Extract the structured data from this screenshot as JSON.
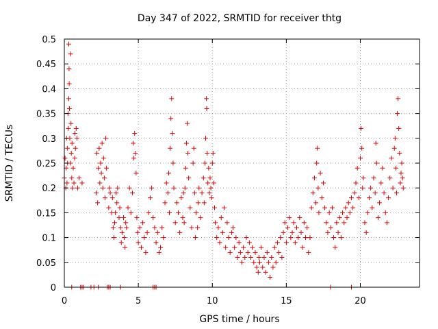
{
  "chart_data": {
    "type": "scatter",
    "title": "Day 347 of 2022, SRMTID for receiver thtg",
    "xlabel": "GPS time / hours",
    "ylabel": "SRMTID / TECUs",
    "xlim": [
      0,
      24
    ],
    "ylim": [
      0,
      0.5
    ],
    "xticks": [
      0,
      5,
      10,
      15,
      20
    ],
    "xtick_labels": [
      "0",
      "5",
      "10",
      "15",
      "20"
    ],
    "yticks": [
      0,
      0.05,
      0.1,
      0.15,
      0.2,
      0.25,
      0.3,
      0.35,
      0.4,
      0.45,
      0.5
    ],
    "ytick_labels": [
      "0",
      "0.05",
      "0.1",
      "0.15",
      "0.2",
      "0.25",
      "0.3",
      "0.35",
      "0.4",
      "0.45",
      "0.5"
    ],
    "grid": true,
    "legend": "none",
    "marker": "+",
    "color": "#dd0000",
    "series": [
      {
        "points": [
          [
            0.0,
            0.22
          ],
          [
            0.05,
            0.26
          ],
          [
            0.1,
            0.2
          ],
          [
            0.12,
            0.24
          ],
          [
            0.15,
            0.3
          ],
          [
            0.18,
            0.21
          ],
          [
            0.2,
            0.28
          ],
          [
            0.22,
            0.25
          ],
          [
            0.25,
            0.35
          ],
          [
            0.27,
            0.32
          ],
          [
            0.3,
            0.38
          ],
          [
            0.3,
            0.49
          ],
          [
            0.32,
            0.44
          ],
          [
            0.33,
            0.41
          ],
          [
            0.35,
            0.36
          ],
          [
            0.37,
            0.3
          ],
          [
            0.4,
            0.25
          ],
          [
            0.42,
            0.47
          ],
          [
            0.45,
            0.33
          ],
          [
            0.47,
            0.27
          ],
          [
            0.5,
            0.22
          ],
          [
            0.52,
            0.29
          ],
          [
            0.55,
            0.2
          ],
          [
            0.6,
            0.24
          ],
          [
            0.65,
            0.21
          ],
          [
            0.7,
            0.26
          ],
          [
            0.72,
            0.31
          ],
          [
            0.75,
            0.28
          ],
          [
            0.8,
            0.32
          ],
          [
            0.85,
            0.3
          ],
          [
            0.9,
            0.2
          ],
          [
            1.0,
            0.22
          ],
          [
            1.2,
            0.21
          ],
          [
            2.15,
            0.19
          ],
          [
            2.2,
            0.27
          ],
          [
            2.25,
            0.17
          ],
          [
            2.3,
            0.24
          ],
          [
            2.35,
            0.28
          ],
          [
            2.4,
            0.21
          ],
          [
            2.45,
            0.25
          ],
          [
            2.5,
            0.23
          ],
          [
            2.55,
            0.29
          ],
          [
            2.6,
            0.2
          ],
          [
            2.65,
            0.26
          ],
          [
            2.7,
            0.22
          ],
          [
            2.75,
            0.18
          ],
          [
            2.8,
            0.3
          ],
          [
            2.85,
            0.24
          ],
          [
            3.0,
            0.16
          ],
          [
            3.05,
            0.2
          ],
          [
            3.1,
            0.19
          ],
          [
            3.2,
            0.15
          ],
          [
            3.25,
            0.18
          ],
          [
            3.3,
            0.12
          ],
          [
            3.35,
            0.1
          ],
          [
            3.4,
            0.13
          ],
          [
            3.45,
            0.15
          ],
          [
            3.5,
            0.19
          ],
          [
            3.55,
            0.17
          ],
          [
            3.6,
            0.2
          ],
          [
            3.7,
            0.14
          ],
          [
            3.75,
            0.16
          ],
          [
            3.8,
            0.12
          ],
          [
            3.85,
            0.09
          ],
          [
            3.9,
            0.11
          ],
          [
            4.0,
            0.14
          ],
          [
            4.05,
            0.1
          ],
          [
            4.1,
            0.08
          ],
          [
            4.15,
            0.13
          ],
          [
            4.2,
            0.12
          ],
          [
            4.3,
            0.16
          ],
          [
            4.4,
            0.2
          ],
          [
            4.5,
            0.15
          ],
          [
            4.6,
            0.19
          ],
          [
            4.65,
            0.29
          ],
          [
            4.7,
            0.26
          ],
          [
            4.75,
            0.31
          ],
          [
            4.8,
            0.27
          ],
          [
            4.85,
            0.23
          ],
          [
            4.9,
            0.14
          ],
          [
            4.95,
            0.11
          ],
          [
            5.0,
            0.09
          ],
          [
            5.1,
            0.12
          ],
          [
            5.2,
            0.08
          ],
          [
            5.3,
            0.13
          ],
          [
            5.4,
            0.1
          ],
          [
            5.5,
            0.07
          ],
          [
            5.6,
            0.11
          ],
          [
            5.7,
            0.15
          ],
          [
            5.8,
            0.18
          ],
          [
            5.9,
            0.2
          ],
          [
            6.0,
            0.14
          ],
          [
            6.1,
            0.12
          ],
          [
            6.2,
            0.09
          ],
          [
            6.3,
            0.11
          ],
          [
            6.4,
            0.07
          ],
          [
            6.5,
            0.08
          ],
          [
            6.6,
            0.12
          ],
          [
            6.7,
            0.1
          ],
          [
            6.8,
            0.17
          ],
          [
            6.9,
            0.21
          ],
          [
            7.0,
            0.19
          ],
          [
            7.05,
            0.23
          ],
          [
            7.1,
            0.15
          ],
          [
            7.15,
            0.28
          ],
          [
            7.2,
            0.34
          ],
          [
            7.25,
            0.38
          ],
          [
            7.3,
            0.31
          ],
          [
            7.35,
            0.25
          ],
          [
            7.4,
            0.2
          ],
          [
            7.5,
            0.13
          ],
          [
            7.6,
            0.17
          ],
          [
            7.7,
            0.15
          ],
          [
            7.8,
            0.11
          ],
          [
            7.9,
            0.18
          ],
          [
            8.0,
            0.14
          ],
          [
            8.05,
            0.19
          ],
          [
            8.1,
            0.13
          ],
          [
            8.15,
            0.2
          ],
          [
            8.2,
            0.24
          ],
          [
            8.25,
            0.29
          ],
          [
            8.3,
            0.33
          ],
          [
            8.35,
            0.27
          ],
          [
            8.4,
            0.22
          ],
          [
            8.5,
            0.16
          ],
          [
            8.6,
            0.12
          ],
          [
            8.7,
            0.25
          ],
          [
            8.75,
            0.28
          ],
          [
            8.8,
            0.19
          ],
          [
            8.85,
            0.1
          ],
          [
            8.9,
            0.15
          ],
          [
            9.0,
            0.12
          ],
          [
            9.05,
            0.17
          ],
          [
            9.1,
            0.2
          ],
          [
            9.2,
            0.14
          ],
          [
            9.3,
            0.19
          ],
          [
            9.4,
            0.22
          ],
          [
            9.45,
            0.17
          ],
          [
            9.5,
            0.25
          ],
          [
            9.55,
            0.3
          ],
          [
            9.6,
            0.38
          ],
          [
            9.62,
            0.36
          ],
          [
            9.65,
            0.27
          ],
          [
            9.7,
            0.21
          ],
          [
            9.75,
            0.24
          ],
          [
            9.8,
            0.19
          ],
          [
            9.85,
            0.22
          ],
          [
            9.9,
            0.2
          ],
          [
            9.95,
            0.18
          ],
          [
            10.0,
            0.25
          ],
          [
            10.05,
            0.27
          ],
          [
            10.1,
            0.21
          ],
          [
            10.15,
            0.16
          ],
          [
            10.2,
            0.13
          ],
          [
            10.3,
            0.1
          ],
          [
            10.4,
            0.12
          ],
          [
            10.5,
            0.09
          ],
          [
            10.6,
            0.14
          ],
          [
            10.7,
            0.11
          ],
          [
            10.8,
            0.16
          ],
          [
            10.9,
            0.08
          ],
          [
            11.0,
            0.13
          ],
          [
            11.1,
            0.1
          ],
          [
            11.2,
            0.07
          ],
          [
            11.3,
            0.11
          ],
          [
            11.4,
            0.12
          ],
          [
            11.5,
            0.08
          ],
          [
            11.6,
            0.1
          ],
          [
            11.7,
            0.06
          ],
          [
            11.8,
            0.09
          ],
          [
            11.9,
            0.07
          ],
          [
            12.0,
            0.05
          ],
          [
            12.1,
            0.08
          ],
          [
            12.2,
            0.06
          ],
          [
            12.3,
            0.1
          ],
          [
            12.4,
            0.07
          ],
          [
            12.5,
            0.09
          ],
          [
            12.6,
            0.06
          ],
          [
            12.7,
            0.08
          ],
          [
            12.8,
            0.05
          ],
          [
            12.9,
            0.07
          ],
          [
            13.0,
            0.04
          ],
          [
            13.1,
            0.03
          ],
          [
            13.15,
            0.06
          ],
          [
            13.2,
            0.05
          ],
          [
            13.3,
            0.08
          ],
          [
            13.4,
            0.04
          ],
          [
            13.5,
            0.06
          ],
          [
            13.6,
            0.03
          ],
          [
            13.7,
            0.07
          ],
          [
            13.8,
            0.05
          ],
          [
            13.9,
            0.02
          ],
          [
            14.0,
            0.06
          ],
          [
            14.1,
            0.04
          ],
          [
            14.2,
            0.08
          ],
          [
            14.3,
            0.05
          ],
          [
            14.4,
            0.09
          ],
          [
            14.5,
            0.07
          ],
          [
            14.6,
            0.1
          ],
          [
            14.7,
            0.06
          ],
          [
            14.8,
            0.11
          ],
          [
            14.9,
            0.13
          ],
          [
            15.0,
            0.09
          ],
          [
            15.1,
            0.12
          ],
          [
            15.2,
            0.14
          ],
          [
            15.3,
            0.1
          ],
          [
            15.4,
            0.11
          ],
          [
            15.5,
            0.13
          ],
          [
            15.6,
            0.09
          ],
          [
            15.7,
            0.12
          ],
          [
            15.8,
            0.1
          ],
          [
            15.9,
            0.14
          ],
          [
            16.0,
            0.11
          ],
          [
            16.1,
            0.08
          ],
          [
            16.2,
            0.13
          ],
          [
            16.3,
            0.1
          ],
          [
            16.4,
            0.12
          ],
          [
            16.5,
            0.07
          ],
          [
            16.6,
            0.1
          ],
          [
            16.7,
            0.16
          ],
          [
            16.8,
            0.19
          ],
          [
            16.9,
            0.22
          ],
          [
            17.0,
            0.17
          ],
          [
            17.05,
            0.25
          ],
          [
            17.1,
            0.28
          ],
          [
            17.15,
            0.2
          ],
          [
            17.2,
            0.15
          ],
          [
            17.3,
            0.23
          ],
          [
            17.4,
            0.18
          ],
          [
            17.5,
            0.21
          ],
          [
            17.6,
            0.16
          ],
          [
            17.7,
            0.13
          ],
          [
            17.8,
            0.11
          ],
          [
            17.9,
            0.15
          ],
          [
            18.0,
            0.12
          ],
          [
            18.1,
            0.16
          ],
          [
            18.2,
            0.1
          ],
          [
            18.3,
            0.08
          ],
          [
            18.4,
            0.13
          ],
          [
            18.5,
            0.11
          ],
          [
            18.6,
            0.14
          ],
          [
            18.7,
            0.1
          ],
          [
            18.8,
            0.15
          ],
          [
            18.9,
            0.13
          ],
          [
            19.0,
            0.16
          ],
          [
            19.1,
            0.14
          ],
          [
            19.2,
            0.17
          ],
          [
            19.3,
            0.15
          ],
          [
            19.4,
            0.18
          ],
          [
            19.5,
            0.16
          ],
          [
            19.6,
            0.19
          ],
          [
            19.7,
            0.21
          ],
          [
            19.8,
            0.24
          ],
          [
            19.9,
            0.18
          ],
          [
            20.0,
            0.26
          ],
          [
            20.05,
            0.32
          ],
          [
            20.1,
            0.28
          ],
          [
            20.15,
            0.2
          ],
          [
            20.2,
            0.22
          ],
          [
            20.3,
            0.13
          ],
          [
            20.4,
            0.11
          ],
          [
            20.5,
            0.15
          ],
          [
            20.6,
            0.18
          ],
          [
            20.7,
            0.2
          ],
          [
            20.8,
            0.16
          ],
          [
            20.9,
            0.22
          ],
          [
            21.0,
            0.19
          ],
          [
            21.05,
            0.29
          ],
          [
            21.1,
            0.25
          ],
          [
            21.2,
            0.14
          ],
          [
            21.3,
            0.17
          ],
          [
            21.4,
            0.21
          ],
          [
            21.5,
            0.24
          ],
          [
            21.6,
            0.19
          ],
          [
            21.7,
            0.15
          ],
          [
            21.8,
            0.13
          ],
          [
            21.9,
            0.18
          ],
          [
            22.0,
            0.22
          ],
          [
            22.1,
            0.26
          ],
          [
            22.2,
            0.2
          ],
          [
            22.3,
            0.28
          ],
          [
            22.35,
            0.3
          ],
          [
            22.4,
            0.24
          ],
          [
            22.45,
            0.19
          ],
          [
            22.5,
            0.35
          ],
          [
            22.55,
            0.38
          ],
          [
            22.6,
            0.32
          ],
          [
            22.65,
            0.27
          ],
          [
            22.7,
            0.21
          ],
          [
            22.75,
            0.23
          ],
          [
            22.8,
            0.25
          ],
          [
            22.85,
            0.22
          ],
          [
            22.9,
            0.2
          ],
          [
            0.5,
            0.0
          ],
          [
            1.1,
            0.0
          ],
          [
            1.2,
            0.0
          ],
          [
            1.3,
            0.0
          ],
          [
            1.8,
            0.0
          ],
          [
            2.0,
            0.0
          ],
          [
            2.3,
            0.0
          ],
          [
            2.9,
            0.0
          ],
          [
            3.0,
            0.0
          ],
          [
            3.1,
            0.0
          ],
          [
            3.8,
            0.0
          ],
          [
            6.0,
            0.0
          ],
          [
            6.1,
            0.0
          ],
          [
            6.2,
            0.0
          ],
          [
            18.0,
            0.0
          ],
          [
            19.4,
            0.0
          ]
        ]
      }
    ]
  }
}
